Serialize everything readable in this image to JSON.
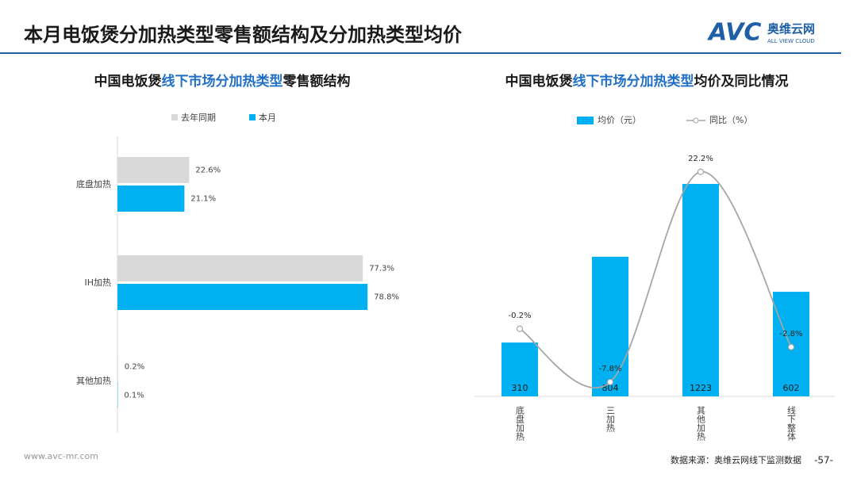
{
  "header": {
    "title": "本月电饭煲分加热类型零售额结构及分加热类型均价",
    "logo_mark": "AVC",
    "logo_name": "奥维云网",
    "logo_sub": "ALL VIEW CLOUD"
  },
  "chart_data": [
    {
      "type": "bar",
      "orientation": "horizontal",
      "title": [
        "中国电饭煲",
        "线下市场分加热类型",
        "零售额结构"
      ],
      "categories": [
        "底盘加热",
        "IH加热",
        "其他加热"
      ],
      "series": [
        {
          "name": "去年同期",
          "color": "#d9d9d9",
          "values": [
            22.6,
            77.3,
            0.2
          ],
          "value_labels": [
            "22.6%",
            "77.3%",
            "0.2%"
          ]
        },
        {
          "name": "本月",
          "color": "#00b0f0",
          "values": [
            21.1,
            78.8,
            0.1
          ],
          "value_labels": [
            "21.1%",
            "78.8%",
            "0.1%"
          ]
        }
      ]
    },
    {
      "type": "bar",
      "title": [
        "中国电饭煲",
        "线下市场分加热类型",
        "均价及同比情况"
      ],
      "categories": [
        "底盘加热",
        "三加热",
        "其他加热",
        "线下整体"
      ],
      "series": [
        {
          "name": "均价（元）",
          "type": "bar",
          "color": "#00b0f0",
          "values": [
            310,
            804,
            1223,
            602
          ]
        },
        {
          "name": "同比（%）",
          "type": "line",
          "axis": "y2",
          "color": "#a6a6a6",
          "values": [
            -0.2,
            -7.8,
            22.2,
            -2.8
          ],
          "value_labels": [
            "-0.2%",
            "-7.8%",
            "22.2%",
            "-2.8%"
          ]
        }
      ]
    }
  ],
  "footer": {
    "website": "www.avc-mr.com",
    "source": "数据来源：奥维云网线下监测数据",
    "page": "-57-"
  }
}
